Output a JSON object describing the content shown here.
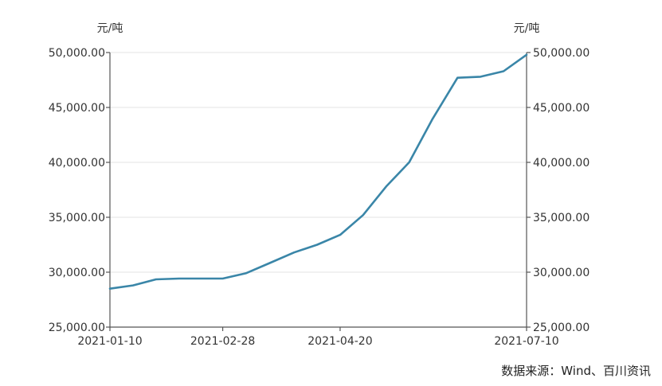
{
  "chart_data": {
    "type": "line",
    "title": "",
    "xlabel": "",
    "y_unit_left": "元/吨",
    "y_unit_right": "元/吨",
    "ylim": [
      25000,
      50000
    ],
    "yticks": [
      25000,
      30000,
      35000,
      40000,
      45000,
      50000
    ],
    "ytick_labels": [
      "25,000.00",
      "30,000.00",
      "35,000.00",
      "40,000.00",
      "45,000.00",
      "50,000.00"
    ],
    "x_tick_labels": [
      "2021-01-10",
      "2021-02-28",
      "2021-04-20",
      "2021-07-10"
    ],
    "grid": true,
    "series": [
      {
        "color": "#3a86a8",
        "points": [
          {
            "x": "2021-01-10",
            "y": 28500
          },
          {
            "x": "2021-01-20",
            "y": 28800
          },
          {
            "x": "2021-01-30",
            "y": 29350
          },
          {
            "x": "2021-02-09",
            "y": 29420
          },
          {
            "x": "2021-02-19",
            "y": 29420
          },
          {
            "x": "2021-02-28",
            "y": 29420
          },
          {
            "x": "2021-03-10",
            "y": 29900
          },
          {
            "x": "2021-03-20",
            "y": 30800
          },
          {
            "x": "2021-03-31",
            "y": 31800
          },
          {
            "x": "2021-04-10",
            "y": 32500
          },
          {
            "x": "2021-04-20",
            "y": 33400
          },
          {
            "x": "2021-04-30",
            "y": 35200
          },
          {
            "x": "2021-05-10",
            "y": 37800
          },
          {
            "x": "2021-05-20",
            "y": 40000
          },
          {
            "x": "2021-05-30",
            "y": 43900
          },
          {
            "x": "2021-06-10",
            "y": 47700
          },
          {
            "x": "2021-06-20",
            "y": 47800
          },
          {
            "x": "2021-06-30",
            "y": 48300
          },
          {
            "x": "2021-07-10",
            "y": 49800
          }
        ]
      }
    ]
  },
  "source_note": "数据来源：Wind、百川资讯"
}
